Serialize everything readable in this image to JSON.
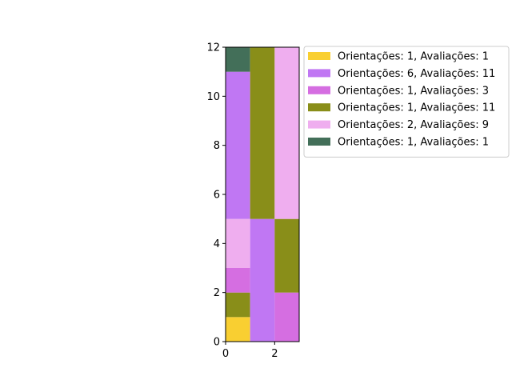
{
  "chart_data": {
    "type": "stacked-grid",
    "title": "",
    "xlabel": "",
    "ylabel": "",
    "xlim": [
      0,
      3
    ],
    "ylim": [
      0,
      12
    ],
    "xticks": [
      0,
      2
    ],
    "yticks": [
      0,
      2,
      4,
      6,
      8,
      10,
      12
    ],
    "grid": false,
    "legend_position": "outside-top-right",
    "legend": [
      {
        "key": "a",
        "label": "Orientações: 1, Avaliações: 1",
        "color": "#f9cf31"
      },
      {
        "key": "b",
        "label": "Orientações: 6, Avaliações: 11",
        "color": "#c077f3"
      },
      {
        "key": "c",
        "label": "Orientações: 1, Avaliações: 3",
        "color": "#d56ee1"
      },
      {
        "key": "d",
        "label": "Orientações: 1, Avaliações: 11",
        "color": "#898e19"
      },
      {
        "key": "e",
        "label": "Orientações: 2, Avaliações: 9",
        "color": "#efaeef"
      },
      {
        "key": "f",
        "label": "Orientações: 1, Avaliações: 1",
        "color": "#436f59"
      }
    ],
    "cells": [
      {
        "x0": 0,
        "x1": 1,
        "y0": 0,
        "y1": 1,
        "key": "a"
      },
      {
        "x0": 0,
        "x1": 1,
        "y0": 1,
        "y1": 2,
        "key": "d"
      },
      {
        "x0": 0,
        "x1": 1,
        "y0": 2,
        "y1": 3,
        "key": "c"
      },
      {
        "x0": 0,
        "x1": 1,
        "y0": 3,
        "y1": 5,
        "key": "e"
      },
      {
        "x0": 0,
        "x1": 1,
        "y0": 5,
        "y1": 11,
        "key": "b"
      },
      {
        "x0": 0,
        "x1": 1,
        "y0": 11,
        "y1": 12,
        "key": "f"
      },
      {
        "x0": 1,
        "x1": 2,
        "y0": 0,
        "y1": 5,
        "key": "b"
      },
      {
        "x0": 1,
        "x1": 2,
        "y0": 5,
        "y1": 12,
        "key": "d"
      },
      {
        "x0": 2,
        "x1": 3,
        "y0": 0,
        "y1": 2,
        "key": "c"
      },
      {
        "x0": 2,
        "x1": 3,
        "y0": 2,
        "y1": 5,
        "key": "d"
      },
      {
        "x0": 2,
        "x1": 3,
        "y0": 5,
        "y1": 12,
        "key": "e"
      }
    ]
  }
}
